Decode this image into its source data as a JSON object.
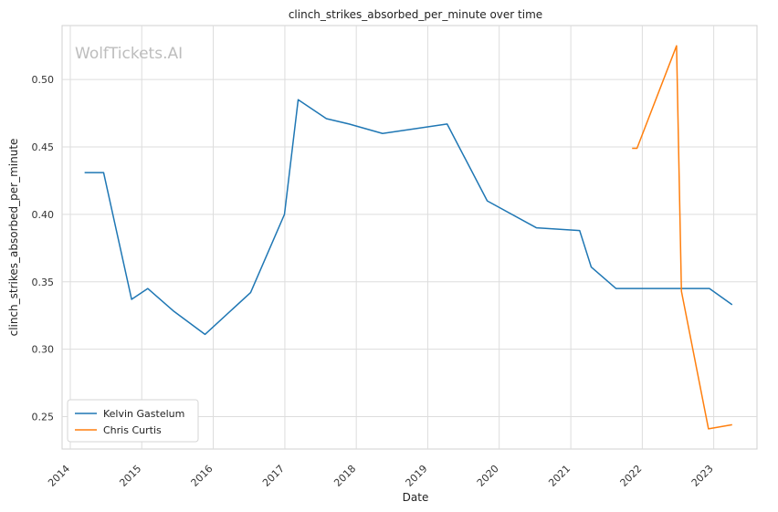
{
  "chart_data": {
    "type": "line",
    "title": "clinch_strikes_absorbed_per_minute over time",
    "xlabel": "Date",
    "ylabel": "clinch_strikes_absorbed_per_minute",
    "watermark": "WolfTickets.AI",
    "xlim": [
      "2013-11-20",
      "2023-08-10"
    ],
    "ylim": [
      0.226,
      0.54
    ],
    "x_ticks": [
      "2014",
      "2015",
      "2016",
      "2017",
      "2018",
      "2019",
      "2020",
      "2021",
      "2022",
      "2023"
    ],
    "x_tick_dates": [
      "2014-01-01",
      "2015-01-01",
      "2016-01-01",
      "2017-01-01",
      "2018-01-01",
      "2019-01-01",
      "2020-01-01",
      "2021-01-01",
      "2022-01-01",
      "2023-01-01"
    ],
    "y_ticks": [
      0.25,
      0.3,
      0.35,
      0.4,
      0.45,
      0.5
    ],
    "y_tick_labels": [
      "0.25",
      "0.30",
      "0.35",
      "0.40",
      "0.45",
      "0.50"
    ],
    "grid": true,
    "legend_position": "lower-left",
    "series": [
      {
        "name": "Kelvin Gastelum",
        "color": "#1f77b4",
        "x": [
          "2014-03-15",
          "2014-06-20",
          "2014-11-10",
          "2015-02-01",
          "2015-06-15",
          "2015-11-20",
          "2016-07-10",
          "2016-12-30",
          "2017-03-10",
          "2017-08-01",
          "2017-11-25",
          "2018-05-15",
          "2019-04-10",
          "2019-11-01",
          "2020-07-10",
          "2021-02-15",
          "2021-04-15",
          "2021-08-20",
          "2022-03-10",
          "2022-12-10",
          "2023-04-05"
        ],
        "y": [
          0.431,
          0.431,
          0.337,
          0.345,
          0.328,
          0.311,
          0.342,
          0.4,
          0.485,
          0.471,
          0.467,
          0.46,
          0.467,
          0.41,
          0.39,
          0.388,
          0.361,
          0.345,
          0.345,
          0.345,
          0.333
        ]
      },
      {
        "name": "Chris Curtis",
        "color": "#ff7f0e",
        "x": [
          "2021-11-10",
          "2021-12-05",
          "2022-06-25",
          "2022-07-20",
          "2022-12-05",
          "2023-04-05"
        ],
        "y": [
          0.449,
          0.449,
          0.525,
          0.343,
          0.241,
          0.244
        ]
      }
    ]
  }
}
